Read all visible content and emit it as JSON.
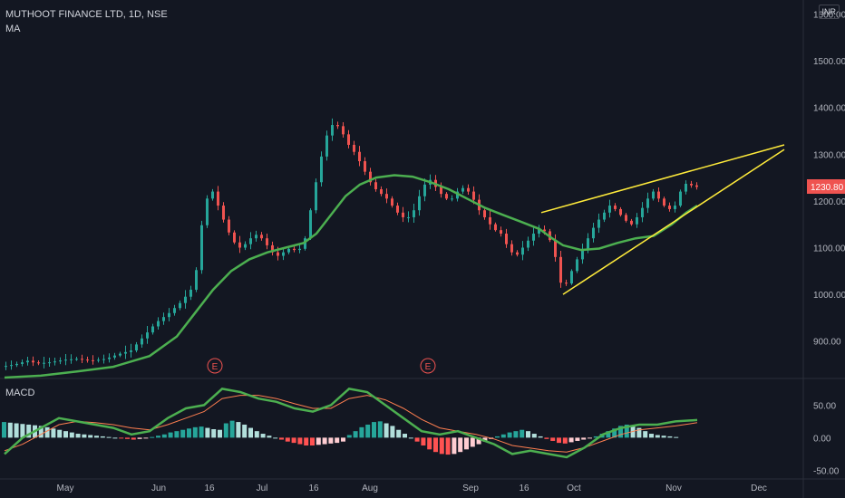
{
  "header": {
    "symbol_line": "MUTHOOT FINANCE LTD, 1D, NSE",
    "indicator": "MA",
    "currency_badge": "INR"
  },
  "macd_label": "MACD",
  "colors": {
    "background": "#131722",
    "up": "#26a69a",
    "down": "#ef5350",
    "ma": "#4caf50",
    "signal": "#ff7f50",
    "trendline": "#ffeb3b",
    "price_badge": "#ef5350",
    "hist_up_strong": "#26a69a",
    "hist_up_weak": "#b2dfdb",
    "hist_down_strong": "#ff5252",
    "hist_down_weak": "#ffcdd2"
  },
  "chart_data": [
    {
      "type": "candlestick",
      "title": "MUTHOOT FINANCE LTD, 1D, NSE",
      "y_axis_ticks": [
        "900.00",
        "1000.00",
        "1100.00",
        "1200.00",
        "1300.00",
        "1400.00",
        "1500.00",
        "1600.00"
      ],
      "y_range": [
        820,
        1630
      ],
      "x_axis_ticks": [
        "May",
        "Jun",
        "16",
        "Jul",
        "16",
        "Aug",
        "Sep",
        "16",
        "Oct",
        "Nov",
        "Dec"
      ],
      "last_price": "1230.80",
      "earnings_markers": [
        "E",
        "E"
      ],
      "ma_label": "MA",
      "price_path": [
        [
          0,
          845
        ],
        [
          8,
          850
        ],
        [
          15,
          858
        ],
        [
          20,
          852
        ],
        [
          28,
          855
        ],
        [
          35,
          860
        ],
        [
          42,
          862
        ],
        [
          50,
          858
        ],
        [
          58,
          862
        ],
        [
          65,
          872
        ],
        [
          72,
          880
        ],
        [
          79,
          910
        ],
        [
          86,
          940
        ],
        [
          93,
          960
        ],
        [
          100,
          985
        ],
        [
          107,
          1020
        ],
        [
          112,
          1180
        ],
        [
          116,
          1230
        ],
        [
          120,
          1190
        ],
        [
          124,
          1150
        ],
        [
          128,
          1115
        ],
        [
          132,
          1100
        ],
        [
          136,
          1110
        ],
        [
          140,
          1130
        ],
        [
          144,
          1120
        ],
        [
          148,
          1100
        ],
        [
          152,
          1080
        ],
        [
          156,
          1090
        ],
        [
          160,
          1100
        ],
        [
          164,
          1090
        ],
        [
          168,
          1120
        ],
        [
          172,
          1200
        ],
        [
          176,
          1280
        ],
        [
          180,
          1340
        ],
        [
          184,
          1370
        ],
        [
          188,
          1350
        ],
        [
          192,
          1320
        ],
        [
          196,
          1300
        ],
        [
          200,
          1270
        ],
        [
          204,
          1240
        ],
        [
          208,
          1220
        ],
        [
          212,
          1210
        ],
        [
          216,
          1190
        ],
        [
          220,
          1170
        ],
        [
          224,
          1160
        ],
        [
          228,
          1180
        ],
        [
          232,
          1220
        ],
        [
          236,
          1250
        ],
        [
          240,
          1230
        ],
        [
          244,
          1210
        ],
        [
          248,
          1200
        ],
        [
          252,
          1220
        ],
        [
          256,
          1230
        ],
        [
          260,
          1210
        ],
        [
          264,
          1180
        ],
        [
          268,
          1160
        ],
        [
          272,
          1140
        ],
        [
          276,
          1130
        ],
        [
          280,
          1100
        ],
        [
          284,
          1080
        ],
        [
          288,
          1100
        ],
        [
          292,
          1120
        ],
        [
          296,
          1140
        ],
        [
          300,
          1135
        ],
        [
          304,
          1110
        ],
        [
          306,
          1080
        ],
        [
          308,
          1040
        ],
        [
          310,
          1010
        ],
        [
          313,
          1030
        ],
        [
          316,
          1060
        ],
        [
          320,
          1090
        ],
        [
          324,
          1120
        ],
        [
          328,
          1150
        ],
        [
          332,
          1170
        ],
        [
          336,
          1190
        ],
        [
          340,
          1180
        ],
        [
          344,
          1160
        ],
        [
          348,
          1150
        ],
        [
          352,
          1170
        ],
        [
          356,
          1200
        ],
        [
          360,
          1220
        ],
        [
          364,
          1200
        ],
        [
          368,
          1180
        ],
        [
          372,
          1190
        ],
        [
          376,
          1230
        ],
        [
          379,
          1240
        ],
        [
          382,
          1230
        ]
      ],
      "ma_path": [
        [
          0,
          822
        ],
        [
          20,
          826
        ],
        [
          40,
          835
        ],
        [
          60,
          845
        ],
        [
          80,
          868
        ],
        [
          95,
          910
        ],
        [
          105,
          960
        ],
        [
          115,
          1010
        ],
        [
          125,
          1050
        ],
        [
          135,
          1075
        ],
        [
          145,
          1090
        ],
        [
          155,
          1100
        ],
        [
          165,
          1110
        ],
        [
          172,
          1130
        ],
        [
          180,
          1170
        ],
        [
          188,
          1210
        ],
        [
          196,
          1235
        ],
        [
          205,
          1250
        ],
        [
          215,
          1255
        ],
        [
          225,
          1252
        ],
        [
          235,
          1240
        ],
        [
          245,
          1225
        ],
        [
          255,
          1205
        ],
        [
          265,
          1185
        ],
        [
          275,
          1170
        ],
        [
          285,
          1155
        ],
        [
          295,
          1140
        ],
        [
          302,
          1120
        ],
        [
          308,
          1105
        ],
        [
          318,
          1095
        ],
        [
          328,
          1098
        ],
        [
          338,
          1110
        ],
        [
          348,
          1120
        ],
        [
          358,
          1125
        ],
        [
          368,
          1150
        ],
        [
          376,
          1175
        ],
        [
          382,
          1190
        ]
      ],
      "trendlines": [
        [
          [
            296,
            1175
          ],
          [
            430,
            1320
          ]
        ],
        [
          [
            308,
            1000
          ],
          [
            430,
            1310
          ]
        ]
      ]
    },
    {
      "type": "macd",
      "title": "MACD",
      "y_axis_ticks": [
        "50.00",
        "0.00",
        "-50.00"
      ],
      "y_range": [
        -62,
        88
      ],
      "histogram": [
        24,
        23,
        22,
        21,
        20,
        19,
        18,
        16,
        14,
        12,
        10,
        8,
        6,
        5,
        4,
        3,
        2,
        1,
        0,
        -1,
        -2,
        -3,
        -2,
        -1,
        1,
        3,
        5,
        8,
        10,
        12,
        14,
        16,
        17,
        15,
        13,
        12,
        22,
        26,
        24,
        20,
        15,
        10,
        6,
        3,
        0,
        -3,
        -6,
        -8,
        -10,
        -12,
        -12,
        -11,
        -10,
        -9,
        -8,
        -6,
        4,
        10,
        16,
        20,
        24,
        25,
        22,
        18,
        12,
        6,
        0,
        -6,
        -12,
        -18,
        -22,
        -25,
        -26,
        -25,
        -22,
        -18,
        -14,
        -10,
        -6,
        -2,
        2,
        5,
        8,
        10,
        12,
        10,
        6,
        2,
        -2,
        -5,
        -8,
        -9,
        -7,
        -5,
        -3,
        -1,
        2,
        6,
        10,
        14,
        18,
        20,
        19,
        15,
        10,
        6,
        4,
        3,
        2,
        1
      ],
      "macd_path": [
        [
          0,
          -25
        ],
        [
          10,
          0
        ],
        [
          20,
          15
        ],
        [
          30,
          30
        ],
        [
          40,
          25
        ],
        [
          50,
          20
        ],
        [
          60,
          15
        ],
        [
          70,
          5
        ],
        [
          80,
          10
        ],
        [
          90,
          30
        ],
        [
          100,
          45
        ],
        [
          110,
          50
        ],
        [
          120,
          75
        ],
        [
          130,
          70
        ],
        [
          140,
          60
        ],
        [
          150,
          55
        ],
        [
          160,
          45
        ],
        [
          170,
          40
        ],
        [
          180,
          50
        ],
        [
          190,
          75
        ],
        [
          200,
          70
        ],
        [
          210,
          50
        ],
        [
          220,
          30
        ],
        [
          230,
          10
        ],
        [
          240,
          5
        ],
        [
          250,
          10
        ],
        [
          260,
          0
        ],
        [
          270,
          -10
        ],
        [
          280,
          -25
        ],
        [
          290,
          -20
        ],
        [
          300,
          -25
        ],
        [
          310,
          -30
        ],
        [
          320,
          -15
        ],
        [
          330,
          5
        ],
        [
          340,
          15
        ],
        [
          350,
          20
        ],
        [
          360,
          20
        ],
        [
          370,
          25
        ],
        [
          382,
          27
        ]
      ],
      "signal_path": [
        [
          0,
          -20
        ],
        [
          10,
          -10
        ],
        [
          20,
          5
        ],
        [
          30,
          20
        ],
        [
          40,
          25
        ],
        [
          50,
          23
        ],
        [
          60,
          20
        ],
        [
          70,
          15
        ],
        [
          80,
          12
        ],
        [
          90,
          20
        ],
        [
          100,
          30
        ],
        [
          110,
          40
        ],
        [
          120,
          60
        ],
        [
          130,
          65
        ],
        [
          140,
          65
        ],
        [
          150,
          60
        ],
        [
          160,
          52
        ],
        [
          170,
          45
        ],
        [
          180,
          45
        ],
        [
          190,
          60
        ],
        [
          200,
          65
        ],
        [
          210,
          58
        ],
        [
          220,
          45
        ],
        [
          230,
          28
        ],
        [
          240,
          15
        ],
        [
          250,
          10
        ],
        [
          260,
          5
        ],
        [
          270,
          -2
        ],
        [
          280,
          -12
        ],
        [
          290,
          -16
        ],
        [
          300,
          -20
        ],
        [
          310,
          -22
        ],
        [
          320,
          -15
        ],
        [
          330,
          -5
        ],
        [
          340,
          5
        ],
        [
          350,
          12
        ],
        [
          360,
          15
        ],
        [
          370,
          18
        ],
        [
          382,
          23
        ]
      ]
    }
  ]
}
